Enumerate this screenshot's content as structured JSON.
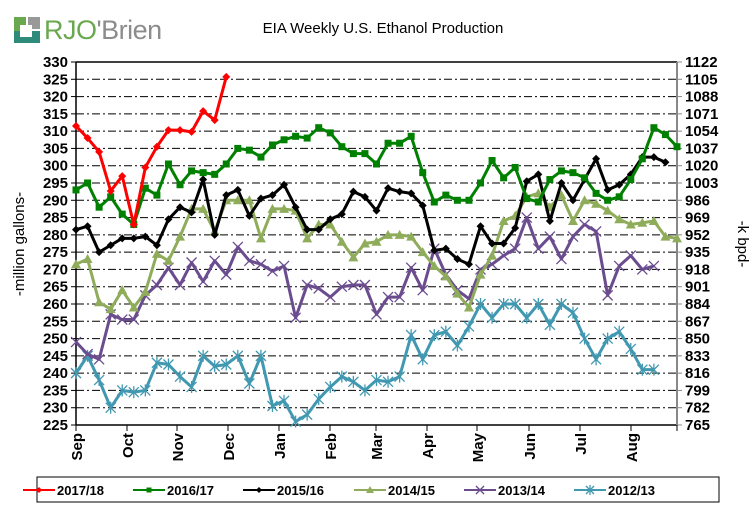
{
  "brand": {
    "logo_part1": "RJO",
    "logo_part2": "'Brien"
  },
  "chart_data": {
    "type": "line",
    "title": "EIA Weekly U.S. Ethanol Production",
    "ylabel": "-million gallons-",
    "y2label": "-k bpd-",
    "ylim": [
      225,
      330
    ],
    "y2lim": [
      765,
      1122
    ],
    "yticks": [
      330,
      325,
      320,
      315,
      310,
      305,
      300,
      295,
      290,
      285,
      280,
      275,
      270,
      265,
      260,
      255,
      250,
      245,
      240,
      235,
      230,
      225
    ],
    "y2ticks": [
      "1122",
      "1105",
      "1088",
      "1071",
      "1054",
      "1037",
      "1020",
      "1003",
      "986",
      "969",
      "952",
      "935",
      "918",
      "901",
      "884",
      "867",
      "850",
      "833",
      "816",
      "799",
      "782",
      "765"
    ],
    "xticks": [
      "Sep",
      "Oct",
      "Nov",
      "Dec",
      "Jan",
      "Feb",
      "Mar",
      "Apr",
      "May",
      "Jun",
      "Jul",
      "Aug"
    ],
    "weeks": 52,
    "grid": true,
    "legend_position": "bottom",
    "series": [
      {
        "name": "2017/18",
        "color": "#ff0000",
        "marker": "diamond",
        "values": [
          311.5,
          308,
          304,
          292.7,
          297,
          283,
          299.5,
          305.5,
          310.3,
          310.3,
          309.8,
          315.8,
          313.2,
          325.7
        ]
      },
      {
        "name": "2016/17",
        "color": "#008000",
        "marker": "square",
        "values": [
          293,
          295,
          288,
          291,
          286,
          283,
          293.5,
          291.5,
          300.5,
          294.5,
          298.5,
          298,
          297.5,
          300.5,
          305,
          304.5,
          302.5,
          306,
          307.5,
          308.5,
          308,
          311,
          309.5,
          305.5,
          303.5,
          303.5,
          300.5,
          306.5,
          306.5,
          308.5,
          298,
          289.5,
          291.5,
          290,
          290,
          295,
          301.5,
          296.5,
          299.5,
          290.5,
          289.5,
          296,
          298.5,
          298,
          296.5,
          292,
          290,
          291,
          296,
          302,
          311,
          309,
          305.5
        ]
      },
      {
        "name": "2015/16",
        "color": "#000000",
        "marker": "diamond",
        "values": [
          281.5,
          282.5,
          275,
          277,
          279,
          279,
          279.5,
          277,
          284.5,
          288,
          286.5,
          296,
          280,
          291.5,
          293,
          285.5,
          290.5,
          291.5,
          294.5,
          288,
          281.5,
          281.5,
          284.5,
          286,
          292.5,
          291,
          287,
          293.5,
          292.5,
          292,
          288.5,
          275.5,
          276,
          273,
          271.5,
          282.5,
          277.5,
          277.5,
          282,
          295.5,
          297.5,
          284,
          295,
          290,
          296,
          302,
          293,
          294.5,
          297.5,
          302.5,
          302.5,
          301
        ]
      },
      {
        "name": "2014/15",
        "color": "#8fac5b",
        "marker": "triangle",
        "values": [
          271.5,
          273,
          260.5,
          258.5,
          264,
          259,
          263.5,
          274.5,
          272.5,
          279.5,
          287.5,
          287.5,
          281,
          290,
          290,
          290,
          279,
          287.5,
          287.5,
          287,
          279,
          283,
          283,
          278,
          273.5,
          277.5,
          278,
          280,
          280,
          279.5,
          275,
          271,
          268,
          263,
          259,
          268.5,
          274,
          284,
          285.5,
          291,
          292,
          288,
          291.5,
          284,
          290,
          289,
          287,
          284.5,
          283,
          283.5,
          284,
          279.5,
          279
        ]
      },
      {
        "name": "2013/14",
        "color": "#6b4c8f",
        "marker": "x",
        "values": [
          249,
          245.5,
          244,
          257,
          255.5,
          255.5,
          262.5,
          265.5,
          270.5,
          265.5,
          272,
          266.5,
          272.5,
          268.5,
          276.5,
          272.5,
          271.5,
          269.5,
          271,
          256,
          265.5,
          264.5,
          262,
          265,
          265.5,
          265.5,
          257,
          262,
          262,
          270.5,
          264,
          276,
          268.5,
          264,
          261.5,
          270,
          271.5,
          274,
          276,
          285,
          276,
          279.5,
          273,
          279.5,
          283,
          281,
          262.5,
          271,
          274,
          270,
          271
        ]
      },
      {
        "name": "2012/13",
        "color": "#4198b1",
        "marker": "asterisk",
        "values": [
          240,
          245,
          238,
          230,
          235,
          234.5,
          235,
          243,
          242.5,
          239,
          236,
          245,
          242,
          242.5,
          245,
          237,
          245,
          230.5,
          232,
          226,
          228,
          232.5,
          236,
          239,
          237.5,
          235,
          238,
          237.5,
          239,
          251,
          244,
          251,
          252,
          248,
          253.5,
          260,
          256,
          260,
          260,
          256,
          260,
          254,
          260,
          257.5,
          250,
          244,
          250,
          252,
          247,
          241,
          241
        ]
      }
    ]
  }
}
